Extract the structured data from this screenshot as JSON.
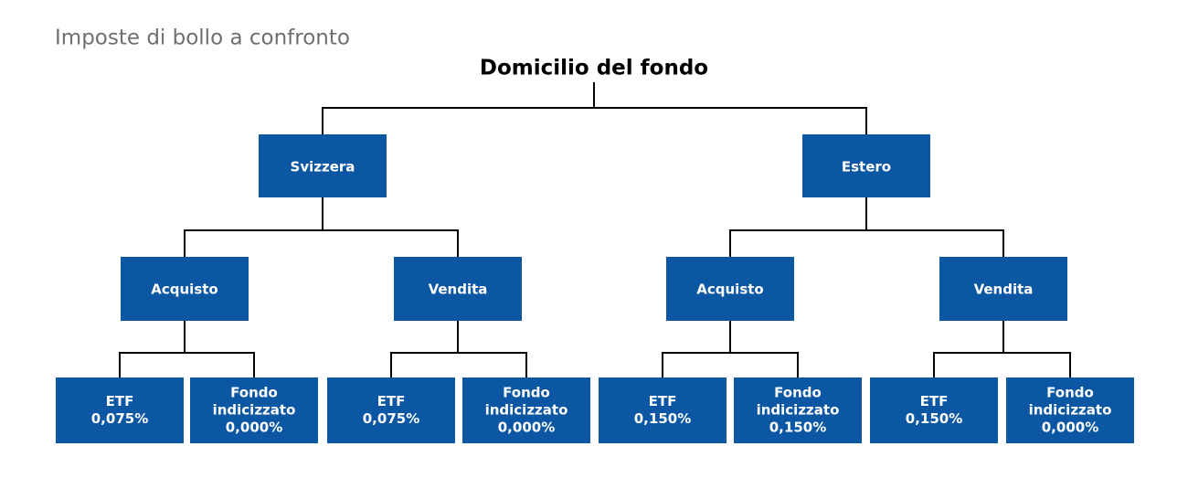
{
  "title": "Imposte di bollo a confronto",
  "root": {
    "label": "Domicilio del fondo"
  },
  "nodes": [
    {
      "label": "Svizzera",
      "children": [
        {
          "label": "Acquisto",
          "children": [
            {
              "lines": [
                "ETF",
                "0,075%"
              ]
            },
            {
              "lines": [
                "Fondo",
                "indicizzato",
                "0,000%"
              ]
            }
          ]
        },
        {
          "label": "Vendita",
          "children": [
            {
              "lines": [
                "ETF",
                "0,075%"
              ]
            },
            {
              "lines": [
                "Fondo",
                "indicizzato",
                "0,000%"
              ]
            }
          ]
        }
      ]
    },
    {
      "label": "Estero",
      "children": [
        {
          "label": "Acquisto",
          "children": [
            {
              "lines": [
                "ETF",
                "0,150%"
              ]
            },
            {
              "lines": [
                "Fondo",
                "indicizzato",
                "0,150%"
              ]
            }
          ]
        },
        {
          "label": "Vendita",
          "children": [
            {
              "lines": [
                "ETF",
                "0,150%"
              ]
            },
            {
              "lines": [
                "Fondo",
                "indicizzato",
                "0,000%"
              ]
            }
          ]
        }
      ]
    }
  ]
}
